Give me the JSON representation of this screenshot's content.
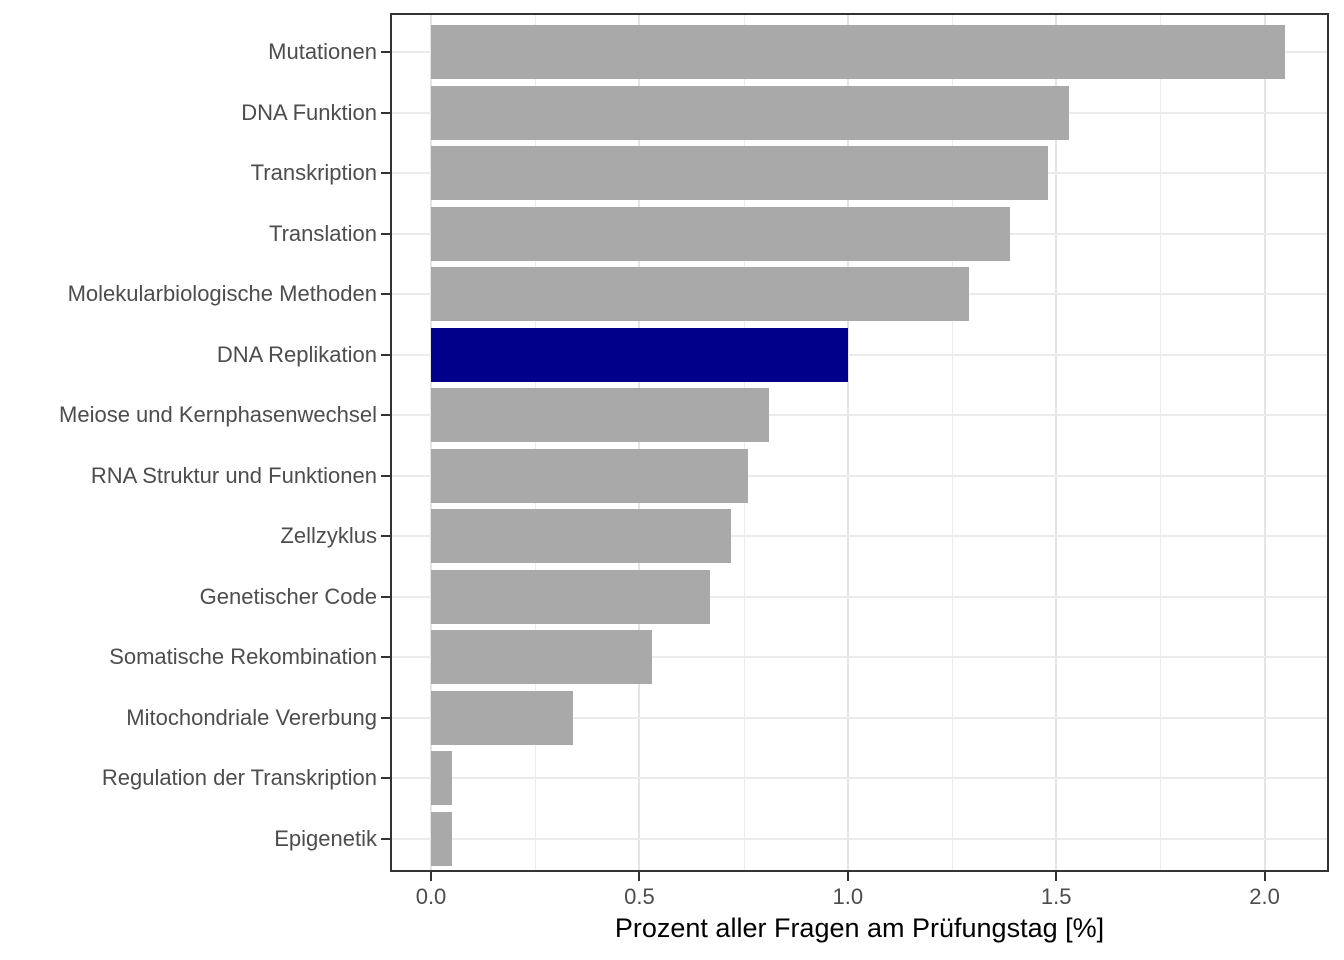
{
  "chart_data": {
    "type": "bar",
    "orientation": "horizontal",
    "title": "",
    "xlabel": "Prozent aller Fragen am Prüfungstag [%]",
    "ylabel": "",
    "categories": [
      "Mutationen",
      "DNA Funktion",
      "Transkription",
      "Translation",
      "Molekularbiologische Methoden",
      "DNA Replikation",
      "Meiose und Kernphasenwechsel",
      "RNA Struktur und Funktionen",
      "Zellzyklus",
      "Genetischer Code",
      "Somatische Rekombination",
      "Mitochondriale Vererbung",
      "Regulation der Transkription",
      "Epigenetik"
    ],
    "values": [
      2.05,
      1.53,
      1.48,
      1.39,
      1.29,
      1.0,
      0.81,
      0.76,
      0.72,
      0.67,
      0.53,
      0.34,
      0.05,
      0.05
    ],
    "highlighted_category": "DNA Replikation",
    "highlight_index": 5,
    "x_ticks": [
      "0.0",
      "0.5",
      "1.0",
      "1.5",
      "2.0"
    ],
    "x_tick_values": [
      0,
      0.5,
      1.0,
      1.5,
      2.0
    ],
    "x_minor_gridline_values": [
      0.25,
      0.75,
      1.25,
      1.75
    ],
    "xlim": [
      -0.1,
      2.15
    ],
    "grid": "on",
    "legend": "none",
    "colors": {
      "bar_default": "#a9a9a9",
      "bar_highlight": "#00008b",
      "panel_border": "#333333",
      "gridline_major": "#e4e4e4",
      "gridline_minor": "#ececec",
      "axis_text": "#4d4d4d",
      "axis_title": "#000000",
      "background": "#ffffff"
    }
  }
}
